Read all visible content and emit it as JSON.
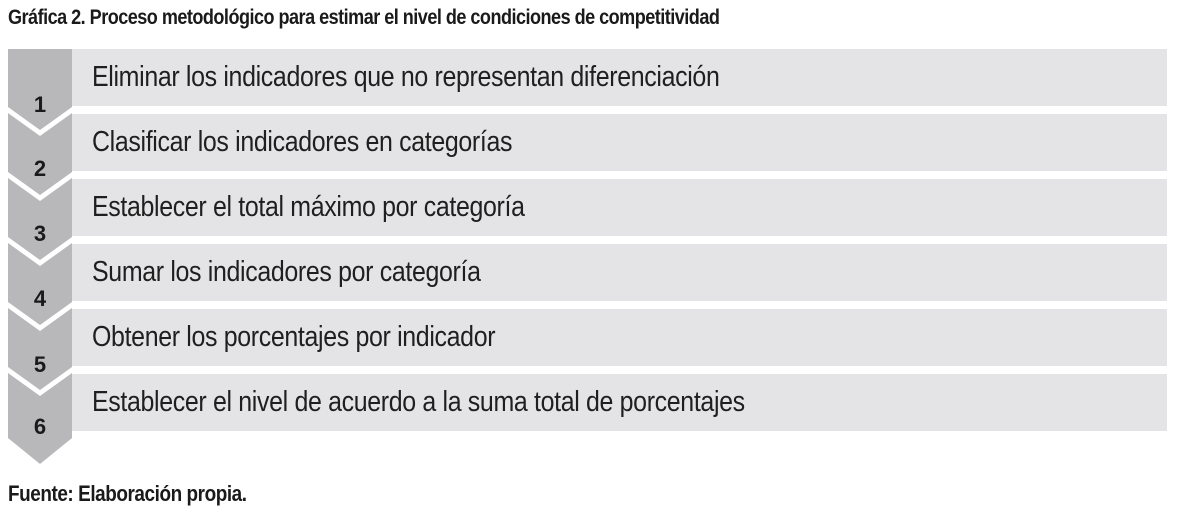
{
  "title": "Gráfica 2. Proceso metodológico para estimar el nivel de condiciones de competitividad",
  "steps": [
    {
      "number": "1",
      "label": "Eliminar los indicadores que no representan diferenciación"
    },
    {
      "number": "2",
      "label": "Clasificar los indicadores en categorías"
    },
    {
      "number": "3",
      "label": "Establecer el total máximo por categoría"
    },
    {
      "number": "4",
      "label": "Sumar los indicadores por categoría"
    },
    {
      "number": "5",
      "label": "Obtener los porcentajes por indicador"
    },
    {
      "number": "6",
      "label": "Establecer el nivel de acuerdo a la suma total de porcentajes"
    }
  ],
  "source": "Fuente: Elaboración propia.",
  "colors": {
    "chevron": "#b8b8ba",
    "bar": "#e4e4e6",
    "text": "#1a1a1a"
  }
}
